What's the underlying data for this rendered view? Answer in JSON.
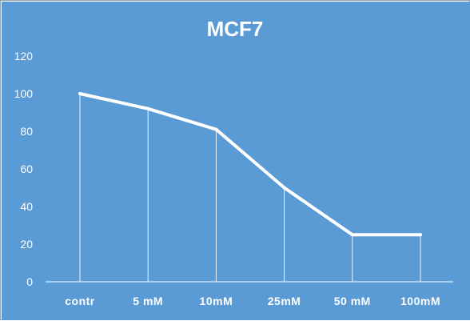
{
  "colors": {
    "background": "#5b9bd5",
    "line": "#ffffff",
    "text": "#ffffff",
    "drop_lines": "#eef4fb"
  },
  "chart_data": {
    "type": "line",
    "title": "MCF7",
    "xlabel": "",
    "ylabel": "",
    "categories": [
      "contr",
      "5 mM",
      "10mM",
      "25mM",
      "50 mM",
      "100mM"
    ],
    "series": [
      {
        "values": [
          100,
          92,
          81,
          50,
          25,
          25
        ]
      }
    ],
    "ylim": [
      0,
      120
    ],
    "yticks": [
      0,
      20,
      40,
      60,
      80,
      100,
      120
    ],
    "ytick_labels": [
      "0",
      "20",
      "40",
      "60",
      "80",
      "100",
      "120"
    ],
    "grid": false,
    "drop_lines": true,
    "legend": "none"
  }
}
